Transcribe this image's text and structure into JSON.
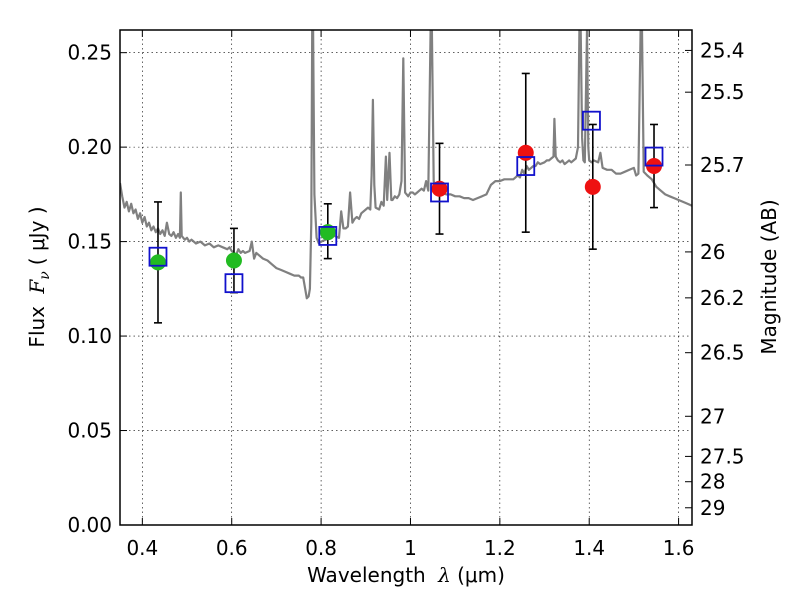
{
  "chart_data": {
    "type": "scatter",
    "xlabel": {
      "prefix": "Wavelength",
      "lambda": "λ",
      "unit": "(μm)"
    },
    "ylabel": {
      "prefix": "Flux",
      "symbol": "F",
      "subscript": "ν",
      "unit": "( μJy )"
    },
    "ylabel_right": "Magnitude (AB)",
    "xlim": [
      0.35,
      1.63
    ],
    "ylim": [
      0.0,
      0.262
    ],
    "grid": true,
    "x_ticks": [
      {
        "value": 0.4,
        "label": "0.4"
      },
      {
        "value": 0.6,
        "label": "0.6"
      },
      {
        "value": 0.8,
        "label": "0.8"
      },
      {
        "value": 1.0,
        "label": "1"
      },
      {
        "value": 1.2,
        "label": "1.2"
      },
      {
        "value": 1.4,
        "label": "1.4"
      },
      {
        "value": 1.6,
        "label": "1.6"
      }
    ],
    "y_ticks": [
      {
        "value": 0.0,
        "label": "0.00"
      },
      {
        "value": 0.05,
        "label": "0.05"
      },
      {
        "value": 0.1,
        "label": "0.10"
      },
      {
        "value": 0.15,
        "label": "0.15"
      },
      {
        "value": 0.2,
        "label": "0.20"
      },
      {
        "value": 0.25,
        "label": "0.25"
      }
    ],
    "right_ticks": [
      {
        "value": 25.4,
        "label": "25.4"
      },
      {
        "value": 25.5,
        "label": "25.5"
      },
      {
        "value": 25.7,
        "label": "25.7"
      },
      {
        "value": 26.0,
        "label": "26"
      },
      {
        "value": 26.2,
        "label": "26.2"
      },
      {
        "value": 26.5,
        "label": "26.5"
      },
      {
        "value": 27.0,
        "label": "27"
      },
      {
        "value": 27.5,
        "label": "27.5"
      },
      {
        "value": 28.0,
        "label": "28"
      },
      {
        "value": 29.0,
        "label": "29"
      }
    ],
    "colors": {
      "template": "#808080",
      "optical": "#22bb22",
      "infrared": "#ee1111",
      "model": "#1111cc",
      "errorbar": "#000000"
    },
    "template_spectrum": [
      [
        0.35,
        0.181
      ],
      [
        0.355,
        0.174
      ],
      [
        0.36,
        0.168
      ],
      [
        0.365,
        0.171
      ],
      [
        0.37,
        0.166
      ],
      [
        0.375,
        0.17
      ],
      [
        0.38,
        0.165
      ],
      [
        0.385,
        0.167
      ],
      [
        0.39,
        0.162
      ],
      [
        0.395,
        0.165
      ],
      [
        0.4,
        0.16
      ],
      [
        0.405,
        0.163
      ],
      [
        0.41,
        0.158
      ],
      [
        0.415,
        0.16
      ],
      [
        0.42,
        0.156
      ],
      [
        0.425,
        0.158
      ],
      [
        0.43,
        0.155
      ],
      [
        0.435,
        0.157
      ],
      [
        0.44,
        0.154
      ],
      [
        0.445,
        0.156
      ],
      [
        0.45,
        0.153
      ],
      [
        0.455,
        0.16
      ],
      [
        0.46,
        0.154
      ],
      [
        0.465,
        0.153
      ],
      [
        0.47,
        0.155
      ],
      [
        0.475,
        0.152
      ],
      [
        0.48,
        0.154
      ],
      [
        0.484,
        0.152
      ],
      [
        0.486,
        0.176
      ],
      [
        0.488,
        0.153
      ],
      [
        0.495,
        0.151
      ],
      [
        0.5,
        0.152
      ],
      [
        0.505,
        0.15
      ],
      [
        0.51,
        0.151
      ],
      [
        0.52,
        0.149
      ],
      [
        0.53,
        0.15
      ],
      [
        0.54,
        0.148
      ],
      [
        0.55,
        0.149
      ],
      [
        0.56,
        0.147
      ],
      [
        0.57,
        0.148
      ],
      [
        0.58,
        0.147
      ],
      [
        0.59,
        0.146
      ],
      [
        0.595,
        0.147
      ],
      [
        0.6,
        0.145
      ],
      [
        0.605,
        0.144
      ],
      [
        0.61,
        0.143
      ],
      [
        0.615,
        0.146
      ],
      [
        0.62,
        0.144
      ],
      [
        0.625,
        0.145
      ],
      [
        0.63,
        0.144
      ],
      [
        0.64,
        0.145
      ],
      [
        0.645,
        0.15
      ],
      [
        0.65,
        0.141
      ],
      [
        0.655,
        0.144
      ],
      [
        0.66,
        0.143
      ],
      [
        0.67,
        0.141
      ],
      [
        0.68,
        0.14
      ],
      [
        0.69,
        0.138
      ],
      [
        0.7,
        0.136
      ],
      [
        0.71,
        0.135
      ],
      [
        0.72,
        0.134
      ],
      [
        0.73,
        0.133
      ],
      [
        0.74,
        0.132
      ],
      [
        0.75,
        0.132
      ],
      [
        0.755,
        0.131
      ],
      [
        0.76,
        0.131
      ],
      [
        0.765,
        0.124
      ],
      [
        0.768,
        0.12
      ],
      [
        0.772,
        0.121
      ],
      [
        0.775,
        0.125
      ],
      [
        0.778,
        0.16
      ],
      [
        0.78,
        0.262
      ],
      [
        0.782,
        0.262
      ],
      [
        0.785,
        0.175
      ],
      [
        0.79,
        0.152
      ],
      [
        0.795,
        0.149
      ],
      [
        0.8,
        0.15
      ],
      [
        0.81,
        0.151
      ],
      [
        0.82,
        0.152
      ],
      [
        0.83,
        0.153
      ],
      [
        0.84,
        0.152
      ],
      [
        0.845,
        0.166
      ],
      [
        0.85,
        0.157
      ],
      [
        0.855,
        0.157
      ],
      [
        0.86,
        0.158
      ],
      [
        0.865,
        0.176
      ],
      [
        0.87,
        0.16
      ],
      [
        0.875,
        0.162
      ],
      [
        0.88,
        0.163
      ],
      [
        0.885,
        0.162
      ],
      [
        0.89,
        0.165
      ],
      [
        0.895,
        0.166
      ],
      [
        0.9,
        0.167
      ],
      [
        0.905,
        0.168
      ],
      [
        0.91,
        0.167
      ],
      [
        0.913,
        0.185
      ],
      [
        0.916,
        0.225
      ],
      [
        0.919,
        0.18
      ],
      [
        0.922,
        0.168
      ],
      [
        0.93,
        0.167
      ],
      [
        0.935,
        0.171
      ],
      [
        0.94,
        0.169
      ],
      [
        0.945,
        0.195
      ],
      [
        0.948,
        0.172
      ],
      [
        0.953,
        0.197
      ],
      [
        0.957,
        0.172
      ],
      [
        0.96,
        0.172
      ],
      [
        0.965,
        0.174
      ],
      [
        0.97,
        0.173
      ],
      [
        0.975,
        0.175
      ],
      [
        0.98,
        0.182
      ],
      [
        0.984,
        0.247
      ],
      [
        0.988,
        0.176
      ],
      [
        0.995,
        0.174
      ],
      [
        1.0,
        0.176
      ],
      [
        1.005,
        0.176
      ],
      [
        1.01,
        0.175
      ],
      [
        1.015,
        0.176
      ],
      [
        1.02,
        0.177
      ],
      [
        1.025,
        0.178
      ],
      [
        1.03,
        0.177
      ],
      [
        1.035,
        0.182
      ],
      [
        1.04,
        0.177
      ],
      [
        1.045,
        0.262
      ],
      [
        1.048,
        0.262
      ],
      [
        1.052,
        0.182
      ],
      [
        1.06,
        0.177
      ],
      [
        1.07,
        0.176
      ],
      [
        1.08,
        0.175
      ],
      [
        1.09,
        0.175
      ],
      [
        1.1,
        0.174
      ],
      [
        1.11,
        0.174
      ],
      [
        1.12,
        0.173
      ],
      [
        1.13,
        0.173
      ],
      [
        1.14,
        0.172
      ],
      [
        1.15,
        0.173
      ],
      [
        1.16,
        0.174
      ],
      [
        1.17,
        0.175
      ],
      [
        1.18,
        0.18
      ],
      [
        1.19,
        0.182
      ],
      [
        1.2,
        0.182
      ],
      [
        1.21,
        0.183
      ],
      [
        1.22,
        0.183
      ],
      [
        1.23,
        0.183
      ],
      [
        1.235,
        0.184
      ],
      [
        1.24,
        0.185
      ],
      [
        1.245,
        0.184
      ],
      [
        1.25,
        0.188
      ],
      [
        1.255,
        0.186
      ],
      [
        1.26,
        0.19
      ],
      [
        1.265,
        0.188
      ],
      [
        1.27,
        0.189
      ],
      [
        1.275,
        0.19
      ],
      [
        1.28,
        0.19
      ],
      [
        1.285,
        0.192
      ],
      [
        1.29,
        0.191
      ],
      [
        1.3,
        0.192
      ],
      [
        1.305,
        0.193
      ],
      [
        1.31,
        0.193
      ],
      [
        1.315,
        0.194
      ],
      [
        1.32,
        0.195
      ],
      [
        1.322,
        0.215
      ],
      [
        1.325,
        0.195
      ],
      [
        1.33,
        0.193
      ],
      [
        1.335,
        0.192
      ],
      [
        1.34,
        0.193
      ],
      [
        1.345,
        0.191
      ],
      [
        1.35,
        0.192
      ],
      [
        1.355,
        0.193
      ],
      [
        1.36,
        0.192
      ],
      [
        1.365,
        0.193
      ],
      [
        1.37,
        0.194
      ],
      [
        1.375,
        0.2
      ],
      [
        1.378,
        0.262
      ],
      [
        1.381,
        0.262
      ],
      [
        1.384,
        0.205
      ],
      [
        1.387,
        0.193
      ],
      [
        1.39,
        0.192
      ],
      [
        1.395,
        0.262
      ],
      [
        1.398,
        0.2
      ],
      [
        1.4,
        0.193
      ],
      [
        1.405,
        0.192
      ],
      [
        1.41,
        0.193
      ],
      [
        1.42,
        0.192
      ],
      [
        1.425,
        0.197
      ],
      [
        1.43,
        0.189
      ],
      [
        1.44,
        0.188
      ],
      [
        1.45,
        0.188
      ],
      [
        1.46,
        0.186
      ],
      [
        1.47,
        0.186
      ],
      [
        1.48,
        0.187
      ],
      [
        1.49,
        0.188
      ],
      [
        1.5,
        0.189
      ],
      [
        1.505,
        0.185
      ],
      [
        1.51,
        0.186
      ],
      [
        1.515,
        0.262
      ],
      [
        1.518,
        0.262
      ],
      [
        1.522,
        0.187
      ],
      [
        1.53,
        0.185
      ],
      [
        1.54,
        0.183
      ],
      [
        1.55,
        0.179
      ],
      [
        1.56,
        0.177
      ],
      [
        1.57,
        0.175
      ],
      [
        1.58,
        0.174
      ],
      [
        1.59,
        0.173
      ],
      [
        1.6,
        0.172
      ],
      [
        1.61,
        0.171
      ],
      [
        1.62,
        0.17
      ],
      [
        1.63,
        0.169
      ]
    ],
    "series": [
      {
        "marker": "circle-filled",
        "color_key": "optical",
        "points": [
          {
            "x": 0.435,
            "y": 0.139,
            "yerr": [
              0.107,
              0.171
            ]
          },
          {
            "x": 0.605,
            "y": 0.14,
            "yerr": [
              0.123,
              0.157
            ]
          },
          {
            "x": 0.815,
            "y": 0.155,
            "yerr": [
              0.141,
              0.17
            ]
          }
        ]
      },
      {
        "marker": "circle-filled",
        "color_key": "infrared",
        "points": [
          {
            "x": 1.065,
            "y": 0.178,
            "yerr": [
              0.154,
              0.202
            ]
          },
          {
            "x": 1.258,
            "y": 0.197,
            "yerr": [
              0.155,
              0.239
            ]
          },
          {
            "x": 1.408,
            "y": 0.179,
            "yerr": [
              0.146,
              0.212
            ]
          },
          {
            "x": 1.545,
            "y": 0.19,
            "yerr": [
              0.168,
              0.212
            ]
          }
        ]
      },
      {
        "marker": "square-open",
        "color_key": "model",
        "points": [
          {
            "x": 0.435,
            "y": 0.142
          },
          {
            "x": 0.605,
            "y": 0.128
          },
          {
            "x": 0.815,
            "y": 0.153
          },
          {
            "x": 1.065,
            "y": 0.176
          },
          {
            "x": 1.258,
            "y": 0.19
          },
          {
            "x": 1.405,
            "y": 0.214
          },
          {
            "x": 1.545,
            "y": 0.195
          }
        ]
      }
    ]
  }
}
